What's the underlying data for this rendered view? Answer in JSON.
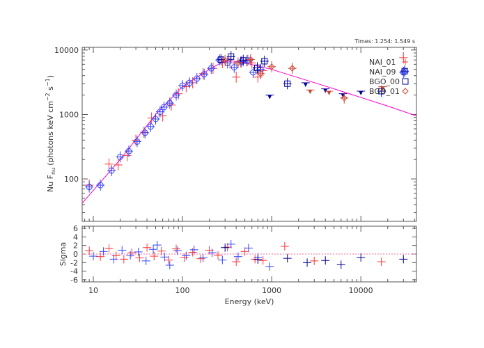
{
  "times_label": "Times: 1.254: 1.549 s",
  "chart_data": [
    {
      "type": "scatter",
      "xlabel": "Energy (keV)",
      "ylabel": "Nu F",
      "ylabel_sub": "nu",
      "ylabel_units": "(photons keV cm",
      "ylabel_exp1": "−2",
      "ylabel_mid": " s",
      "ylabel_exp2": "−1",
      "ylabel_close": ")",
      "xscale": "log",
      "yscale": "log",
      "xlim": [
        7.5,
        42000
      ],
      "ylim": [
        22,
        11000
      ],
      "x_ticks": [
        10,
        100,
        1000,
        10000
      ],
      "x_tick_labels": [
        "10",
        "100",
        "1000",
        "10000"
      ],
      "y_ticks": [
        100,
        1000,
        10000
      ],
      "y_tick_labels": [
        "100",
        "1000",
        "10000"
      ],
      "legend_position": "top-right",
      "model": {
        "color": "#ff00cc",
        "x": [
          7.5,
          20,
          50,
          100,
          200,
          280,
          350,
          500,
          1000,
          5000,
          20000,
          42000
        ],
        "y": [
          42,
          200,
          1000,
          2700,
          5000,
          6500,
          6800,
          6300,
          5000,
          2500,
          1350,
          950
        ]
      },
      "series": [
        {
          "name": "NAI_01",
          "marker": "plus",
          "color": "#ff3333",
          "points": [
            {
              "x": 9,
              "y": 80
            },
            {
              "x": 15,
              "y": 170
            },
            {
              "x": 19,
              "y": 165
            },
            {
              "x": 24,
              "y": 230
            },
            {
              "x": 30,
              "y": 400
            },
            {
              "x": 37,
              "y": 530
            },
            {
              "x": 45,
              "y": 880
            },
            {
              "x": 60,
              "y": 950
            },
            {
              "x": 75,
              "y": 1400
            },
            {
              "x": 90,
              "y": 2100
            },
            {
              "x": 110,
              "y": 2700
            },
            {
              "x": 130,
              "y": 3100
            },
            {
              "x": 170,
              "y": 4300
            },
            {
              "x": 220,
              "y": 5200
            },
            {
              "x": 280,
              "y": 6400
            },
            {
              "x": 340,
              "y": 6300
            },
            {
              "x": 400,
              "y": 3800
            },
            {
              "x": 450,
              "y": 6500
            },
            {
              "x": 520,
              "y": 6800
            },
            {
              "x": 600,
              "y": 6300
            },
            {
              "x": 700,
              "y": 3800
            },
            {
              "x": 800,
              "y": 4800
            },
            {
              "x": 30000,
              "y": 7600
            }
          ]
        },
        {
          "name": "NAI_09",
          "marker": "circle-plus",
          "color": "#3344ff",
          "points": [
            {
              "x": 9,
              "y": 75
            },
            {
              "x": 12,
              "y": 80
            },
            {
              "x": 16,
              "y": 135
            },
            {
              "x": 20,
              "y": 220
            },
            {
              "x": 25,
              "y": 270
            },
            {
              "x": 31,
              "y": 380
            },
            {
              "x": 38,
              "y": 520
            },
            {
              "x": 44,
              "y": 650
            },
            {
              "x": 50,
              "y": 850
            },
            {
              "x": 56,
              "y": 1100
            },
            {
              "x": 62,
              "y": 1300
            },
            {
              "x": 72,
              "y": 1500
            },
            {
              "x": 85,
              "y": 2000
            },
            {
              "x": 100,
              "y": 2800
            },
            {
              "x": 120,
              "y": 3100
            },
            {
              "x": 145,
              "y": 3600
            },
            {
              "x": 175,
              "y": 4200
            },
            {
              "x": 210,
              "y": 5200
            },
            {
              "x": 260,
              "y": 7000
            },
            {
              "x": 320,
              "y": 6300
            },
            {
              "x": 380,
              "y": 5400
            },
            {
              "x": 460,
              "y": 6600
            },
            {
              "x": 540,
              "y": 6900
            },
            {
              "x": 620,
              "y": 4500
            },
            {
              "x": 750,
              "y": 5000
            },
            {
              "x": 30000,
              "y": 4500
            }
          ]
        },
        {
          "name": "BGO_00",
          "marker": "square",
          "color": "#000099",
          "points": [
            {
              "x": 270,
              "y": 7100
            },
            {
              "x": 350,
              "y": 7900
            },
            {
              "x": 480,
              "y": 6900
            },
            {
              "x": 690,
              "y": 5300
            },
            {
              "x": 830,
              "y": 6700
            },
            {
              "x": 1500,
              "y": 3000
            },
            {
              "x": 17000,
              "y": 2300
            },
            {
              "x": 31000,
              "y": 4700
            }
          ],
          "upper_limits": [
            {
              "x": 950,
              "y": 2000
            },
            {
              "x": 2400,
              "y": 3100
            },
            {
              "x": 4000,
              "y": 2500
            },
            {
              "x": 6300,
              "y": 2100
            },
            {
              "x": 10000,
              "y": 2300
            }
          ]
        },
        {
          "name": "BGO_01",
          "marker": "diamond",
          "color": "#cc4433",
          "points": [
            {
              "x": 300,
              "y": 6900
            },
            {
              "x": 420,
              "y": 6300
            },
            {
              "x": 580,
              "y": 7100
            },
            {
              "x": 750,
              "y": 4300
            },
            {
              "x": 1000,
              "y": 5500
            },
            {
              "x": 1700,
              "y": 5200
            },
            {
              "x": 6500,
              "y": 1800
            }
          ],
          "upper_limits": [
            {
              "x": 2700,
              "y": 2400
            },
            {
              "x": 4400,
              "y": 2300
            },
            {
              "x": 17500,
              "y": 2700
            }
          ]
        }
      ]
    },
    {
      "type": "scatter",
      "xlabel": "",
      "ylabel": "Sigma",
      "xscale": "log",
      "ylim": [
        -6.5,
        6.5
      ],
      "y_ticks": [
        -6,
        -4,
        -2,
        0,
        2,
        4,
        6
      ],
      "y_tick_labels": [
        "-6",
        "-4",
        "-2",
        "0",
        "2",
        "4",
        "6"
      ],
      "zero_line": true,
      "series": [
        {
          "name": "NAI_01",
          "color": "#ff3333",
          "points": [
            {
              "x": 9,
              "y": 0.8
            },
            {
              "x": 12,
              "y": -0.6
            },
            {
              "x": 15,
              "y": 1.3
            },
            {
              "x": 18,
              "y": -0.4
            },
            {
              "x": 22,
              "y": -1.2
            },
            {
              "x": 27,
              "y": 0.3
            },
            {
              "x": 33,
              "y": -0.9
            },
            {
              "x": 40,
              "y": 1.5
            },
            {
              "x": 48,
              "y": -0.5
            },
            {
              "x": 58,
              "y": 0.7
            },
            {
              "x": 70,
              "y": -1.4
            },
            {
              "x": 85,
              "y": 1.2
            },
            {
              "x": 105,
              "y": -0.8
            },
            {
              "x": 130,
              "y": 0.4
            },
            {
              "x": 160,
              "y": -1.1
            },
            {
              "x": 200,
              "y": 0.9
            },
            {
              "x": 250,
              "y": -0.3
            },
            {
              "x": 320,
              "y": 1.6
            },
            {
              "x": 400,
              "y": -1.8
            },
            {
              "x": 500,
              "y": 0.6
            },
            {
              "x": 650,
              "y": -1.2
            },
            {
              "x": 800,
              "y": -1.5
            },
            {
              "x": 1400,
              "y": 1.8
            },
            {
              "x": 3000,
              "y": -1.6
            },
            {
              "x": 17000,
              "y": -1.8
            }
          ]
        },
        {
          "name": "NAI_09",
          "color": "#3344ff",
          "points": [
            {
              "x": 10,
              "y": -0.5
            },
            {
              "x": 13,
              "y": 0.6
            },
            {
              "x": 17,
              "y": -1.2
            },
            {
              "x": 21,
              "y": 0.9
            },
            {
              "x": 26,
              "y": -0.3
            },
            {
              "x": 32,
              "y": 0.5
            },
            {
              "x": 39,
              "y": -1.6
            },
            {
              "x": 47,
              "y": 1.1
            },
            {
              "x": 52,
              "y": 2.1
            },
            {
              "x": 63,
              "y": -0.7
            },
            {
              "x": 72,
              "y": -2.6
            },
            {
              "x": 88,
              "y": 0.8
            },
            {
              "x": 110,
              "y": -0.4
            },
            {
              "x": 135,
              "y": 1.0
            },
            {
              "x": 170,
              "y": -0.9
            },
            {
              "x": 215,
              "y": 0.3
            },
            {
              "x": 280,
              "y": -1.4
            },
            {
              "x": 350,
              "y": 2.3
            },
            {
              "x": 420,
              "y": -0.6
            },
            {
              "x": 550,
              "y": 1.4
            },
            {
              "x": 700,
              "y": -0.8
            },
            {
              "x": 950,
              "y": -2.9
            }
          ]
        },
        {
          "name": "BGO_00",
          "color": "#000099",
          "points": [
            {
              "x": 300,
              "y": 1.5
            },
            {
              "x": 700,
              "y": -1.3
            },
            {
              "x": 1500,
              "y": -1.0
            },
            {
              "x": 2500,
              "y": -2.0
            },
            {
              "x": 4000,
              "y": -1.5
            },
            {
              "x": 6000,
              "y": -2.5
            },
            {
              "x": 10000,
              "y": -0.8
            },
            {
              "x": 30000,
              "y": -1.2
            }
          ]
        }
      ]
    }
  ]
}
